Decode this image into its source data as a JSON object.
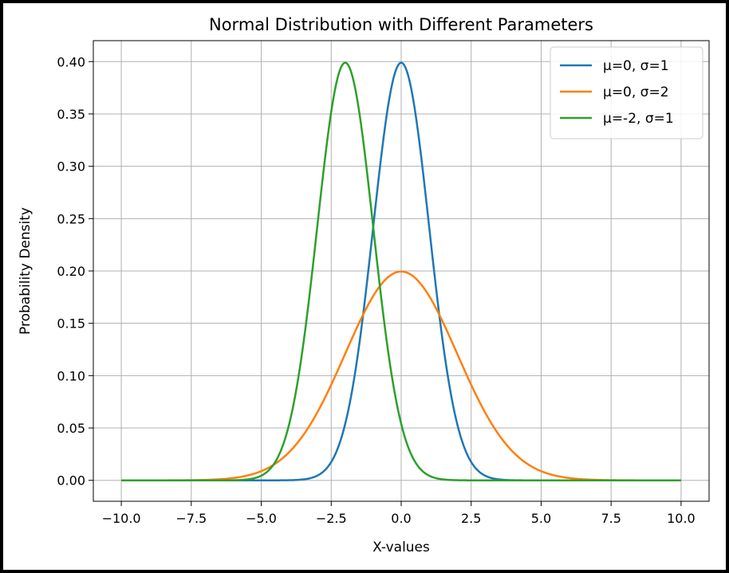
{
  "chart_data": {
    "type": "line",
    "title": "Normal Distribution with Different Parameters",
    "xlabel": "X-values",
    "ylabel": "Probability Density",
    "xlim": [
      -11.0,
      11.0
    ],
    "ylim": [
      -0.02,
      0.42
    ],
    "xticks": [
      -10.0,
      -7.5,
      -5.0,
      -2.5,
      0.0,
      2.5,
      5.0,
      7.5,
      10.0
    ],
    "xtick_labels": [
      "−10.0",
      "−7.5",
      "−5.0",
      "−2.5",
      "0.0",
      "2.5",
      "5.0",
      "7.5",
      "10.0"
    ],
    "yticks": [
      0.0,
      0.05,
      0.1,
      0.15,
      0.2,
      0.25,
      0.3,
      0.35,
      0.4
    ],
    "ytick_labels": [
      "0.00",
      "0.05",
      "0.10",
      "0.15",
      "0.20",
      "0.25",
      "0.30",
      "0.35",
      "0.40"
    ],
    "grid": true,
    "legend_position": "top-right",
    "x_range": [
      -10.0,
      10.0
    ],
    "series": [
      {
        "name": "μ=0, σ=1",
        "mu": 0,
        "sigma": 1,
        "color": "#1f77b4"
      },
      {
        "name": "μ=0, σ=2",
        "mu": 0,
        "sigma": 2,
        "color": "#ff7f0e"
      },
      {
        "name": "μ=-2, σ=1",
        "mu": -2,
        "sigma": 1,
        "color": "#2ca02c"
      }
    ]
  }
}
